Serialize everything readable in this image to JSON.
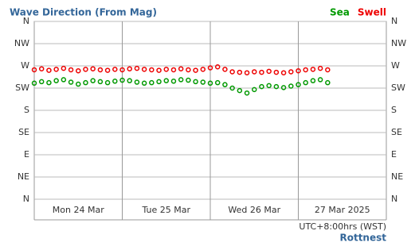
{
  "chart_data": {
    "type": "scatter",
    "title": "Wave Direction (From Mag)",
    "timezone": "UTC+8:00hrs (WST)",
    "location": "Rottnest",
    "legend": "top-right",
    "grid": true,
    "x": [
      0,
      2,
      4,
      6,
      8,
      10,
      12,
      14,
      16,
      18,
      20,
      22,
      24,
      26,
      28,
      30,
      32,
      34,
      36,
      38,
      40,
      42,
      44,
      46,
      48,
      50,
      52,
      54,
      56,
      58,
      60,
      62,
      64,
      66,
      68,
      70,
      72,
      74,
      76,
      78,
      80
    ],
    "xlim": [
      0,
      96
    ],
    "xticks": [
      {
        "value": 12,
        "label": "Mon 24 Mar"
      },
      {
        "value": 36,
        "label": "Tue 25 Mar"
      },
      {
        "value": 60,
        "label": "Wed 26 Mar"
      },
      {
        "value": 84,
        "label": "27 Mar 2025"
      }
    ],
    "ylim": [
      0,
      360
    ],
    "yticks": [
      {
        "value": 360,
        "label": "N"
      },
      {
        "value": 315,
        "label": "NW"
      },
      {
        "value": 270,
        "label": "W"
      },
      {
        "value": 225,
        "label": "SW"
      },
      {
        "value": 180,
        "label": "S"
      },
      {
        "value": 135,
        "label": "SE"
      },
      {
        "value": 90,
        "label": "E"
      },
      {
        "value": 45,
        "label": "NE"
      },
      {
        "value": 0,
        "label": "N"
      }
    ],
    "series": [
      {
        "name": "Sea",
        "color": "#009900",
        "values": [
          235,
          238,
          236,
          240,
          242,
          237,
          233,
          236,
          240,
          238,
          236,
          239,
          241,
          240,
          237,
          235,
          236,
          238,
          240,
          239,
          242,
          241,
          238,
          237,
          235,
          236,
          232,
          225,
          220,
          215,
          222,
          228,
          230,
          228,
          226,
          229,
          232,
          236,
          240,
          242,
          236
        ]
      },
      {
        "name": "Swell",
        "color": "#ee0000",
        "values": [
          262,
          264,
          261,
          263,
          265,
          262,
          260,
          263,
          264,
          262,
          261,
          263,
          262,
          264,
          265,
          263,
          262,
          261,
          263,
          262,
          264,
          262,
          261,
          263,
          266,
          268,
          263,
          258,
          257,
          256,
          258,
          257,
          259,
          257,
          256,
          258,
          260,
          262,
          263,
          265,
          262
        ]
      }
    ]
  }
}
